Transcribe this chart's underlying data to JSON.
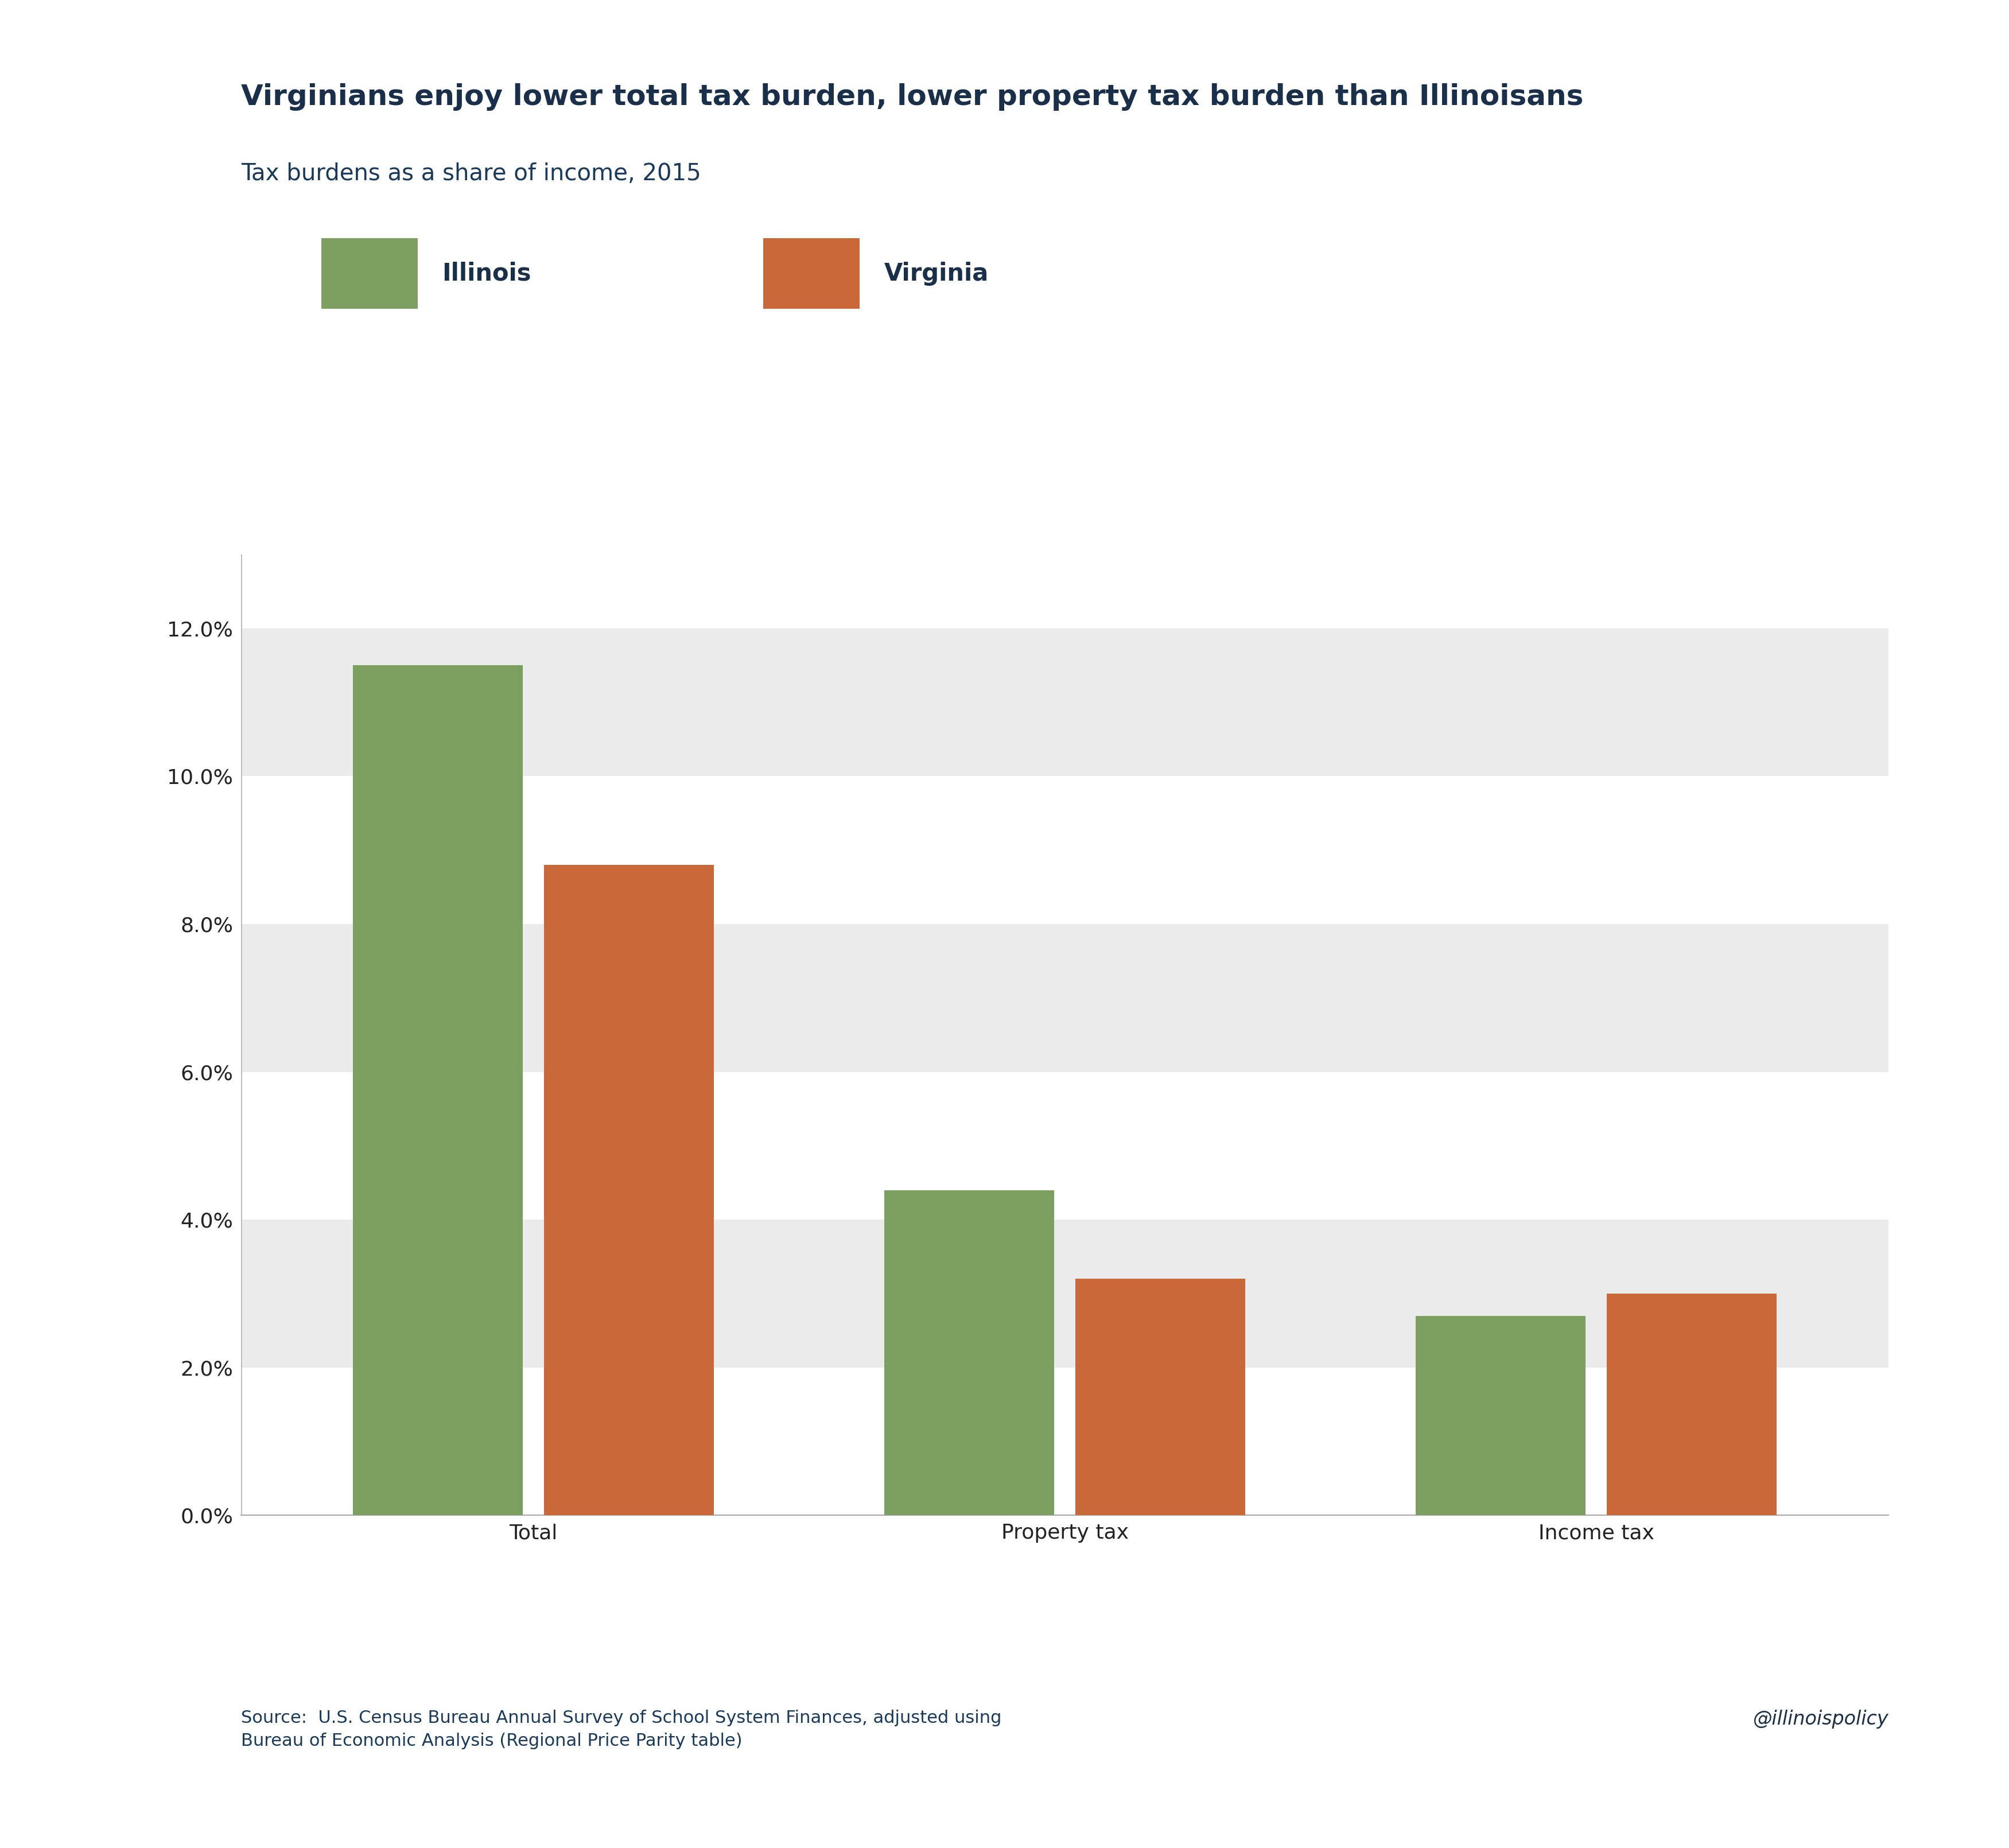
{
  "title": "Virginians enjoy lower total tax burden, lower property tax burden than Illinoisans",
  "subtitle": "Tax burdens as a share of income, 2015",
  "categories": [
    "Total",
    "Property tax",
    "Income tax"
  ],
  "illinois_values": [
    0.115,
    0.044,
    0.027
  ],
  "virginia_values": [
    0.088,
    0.032,
    0.03
  ],
  "illinois_color": "#7a9f5f",
  "virginia_color": "#c9693a",
  "title_color": "#1a2f4a",
  "subtitle_color": "#1a3a5c",
  "tick_label_color": "#222222",
  "text_color": "#1a3a5c",
  "background_color": "#ffffff",
  "band_colors_ordered": [
    "#ffffff",
    "#ebebeb",
    "#ffffff",
    "#ebebeb",
    "#ffffff",
    "#ebebeb",
    "#ffffff"
  ],
  "ylim": [
    0,
    0.13
  ],
  "yticks": [
    0.0,
    0.02,
    0.04,
    0.06,
    0.08,
    0.1,
    0.12
  ],
  "ytick_labels": [
    "0.0%",
    "2.0%",
    "4.0%",
    "6.0%",
    "8.0%",
    "10.0%",
    "12.0%"
  ],
  "source_text": "Source:  U.S. Census Bureau Annual Survey of School System Finances, adjusted using\nBureau of Economic Analysis (Regional Price Parity table)",
  "watermark": "@illinoispolicy",
  "bar_width": 0.32,
  "bar_gap": 0.04
}
